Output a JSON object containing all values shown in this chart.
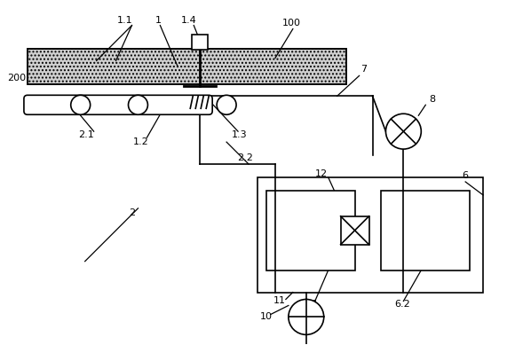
{
  "bg_color": "#ffffff",
  "line_color": "#000000",
  "fig_width": 5.71,
  "fig_height": 3.89,
  "dpi": 100
}
